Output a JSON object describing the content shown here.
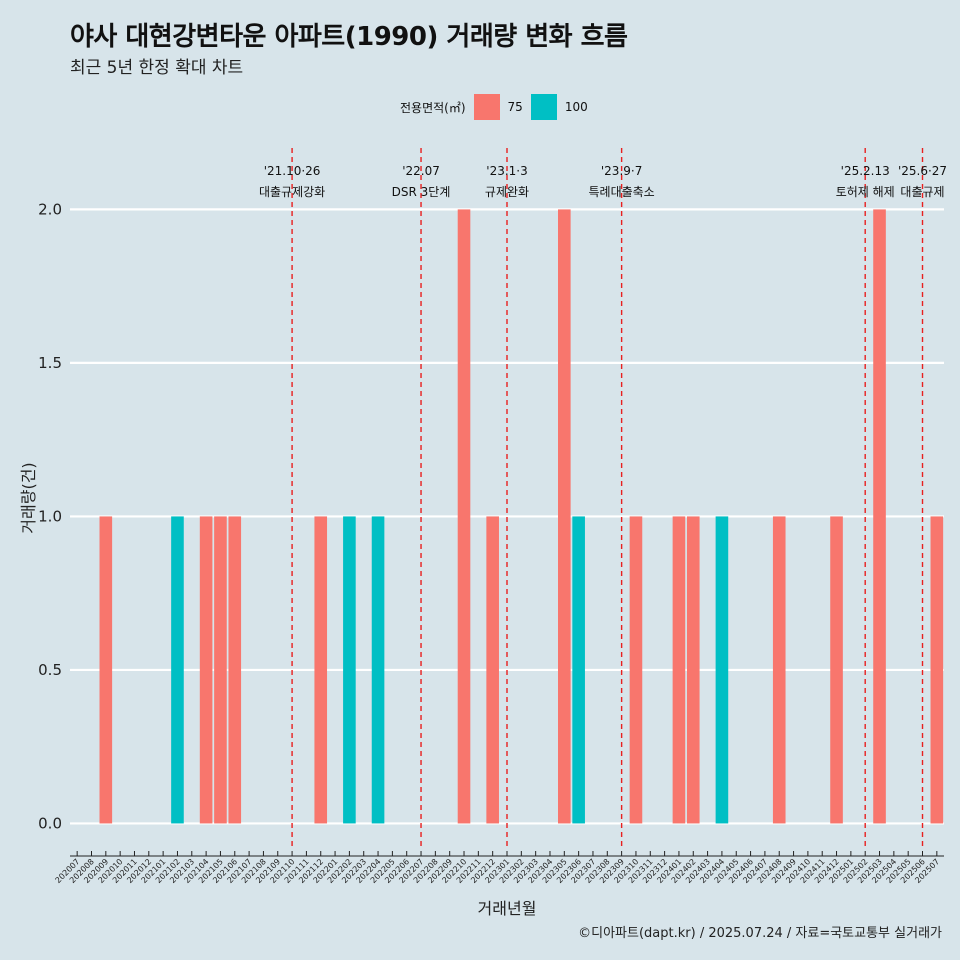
{
  "header": {
    "title": "야사 대현강변타운 아파트(1990) 거래량 변화 흐름",
    "subtitle": "최근 5년 한정 확대 차트"
  },
  "legend": {
    "title": "전용면적(㎡)",
    "items": [
      {
        "label": "75",
        "color": "#f8766d"
      },
      {
        "label": "100",
        "color": "#00bfc4"
      }
    ]
  },
  "caption": "©디아파트(dapt.kr) / 2025.07.24 / 자료=국토교통부 실거래가",
  "chart_data": {
    "type": "bar",
    "xlabel": "거래년월",
    "ylabel": "거래량(건)",
    "ylim": [
      -0.08,
      2.2
    ],
    "yticks": [
      "0.0",
      "0.5",
      "1.0",
      "1.5",
      "2.0"
    ],
    "grid": true,
    "legend_position": "top",
    "categories": [
      "202007",
      "202008",
      "202009",
      "202010",
      "202011",
      "202012",
      "202101",
      "202102",
      "202103",
      "202104",
      "202105",
      "202106",
      "202107",
      "202108",
      "202109",
      "202110",
      "202111",
      "202112",
      "202201",
      "202202",
      "202203",
      "202204",
      "202205",
      "202206",
      "202207",
      "202208",
      "202209",
      "202210",
      "202211",
      "202212",
      "202301",
      "202302",
      "202303",
      "202304",
      "202305",
      "202306",
      "202307",
      "202308",
      "202309",
      "202310",
      "202311",
      "202312",
      "202401",
      "202402",
      "202403",
      "202404",
      "202405",
      "202406",
      "202407",
      "202408",
      "202409",
      "202410",
      "202411",
      "202412",
      "202501",
      "202502",
      "202503",
      "202504",
      "202505",
      "202506",
      "202507"
    ],
    "series": [
      {
        "name": "75",
        "color": "#f8766d",
        "points": [
          [
            "202009",
            1
          ],
          [
            "202104",
            1
          ],
          [
            "202105",
            1
          ],
          [
            "202106",
            1
          ],
          [
            "202112",
            1
          ],
          [
            "202210",
            2
          ],
          [
            "202212",
            1
          ],
          [
            "202305",
            2
          ],
          [
            "202310",
            1
          ],
          [
            "202401",
            1
          ],
          [
            "202402",
            1
          ],
          [
            "202408",
            1
          ],
          [
            "202412",
            1
          ],
          [
            "202503",
            2
          ],
          [
            "202507",
            1
          ]
        ]
      },
      {
        "name": "100",
        "color": "#00bfc4",
        "points": [
          [
            "202102",
            1
          ],
          [
            "202202",
            1
          ],
          [
            "202204",
            1
          ],
          [
            "202306",
            1
          ],
          [
            "202404",
            1
          ]
        ]
      }
    ],
    "events": [
      {
        "month": "202110",
        "label1": "'21.10·26",
        "label2": "대출규제강화"
      },
      {
        "month": "202207",
        "label1": "'22.07",
        "label2": "DSR 3단계"
      },
      {
        "month": "202301",
        "label1": "'23.1·3",
        "label2": "규제완화"
      },
      {
        "month": "202309",
        "label1": "'23.9·7",
        "label2": "특례대출축소"
      },
      {
        "month": "202502",
        "label1": "'25.2.13",
        "label2": "토허제 해제"
      },
      {
        "month": "202506",
        "label1": "'25.6·27",
        "label2": "대출규제"
      }
    ]
  }
}
